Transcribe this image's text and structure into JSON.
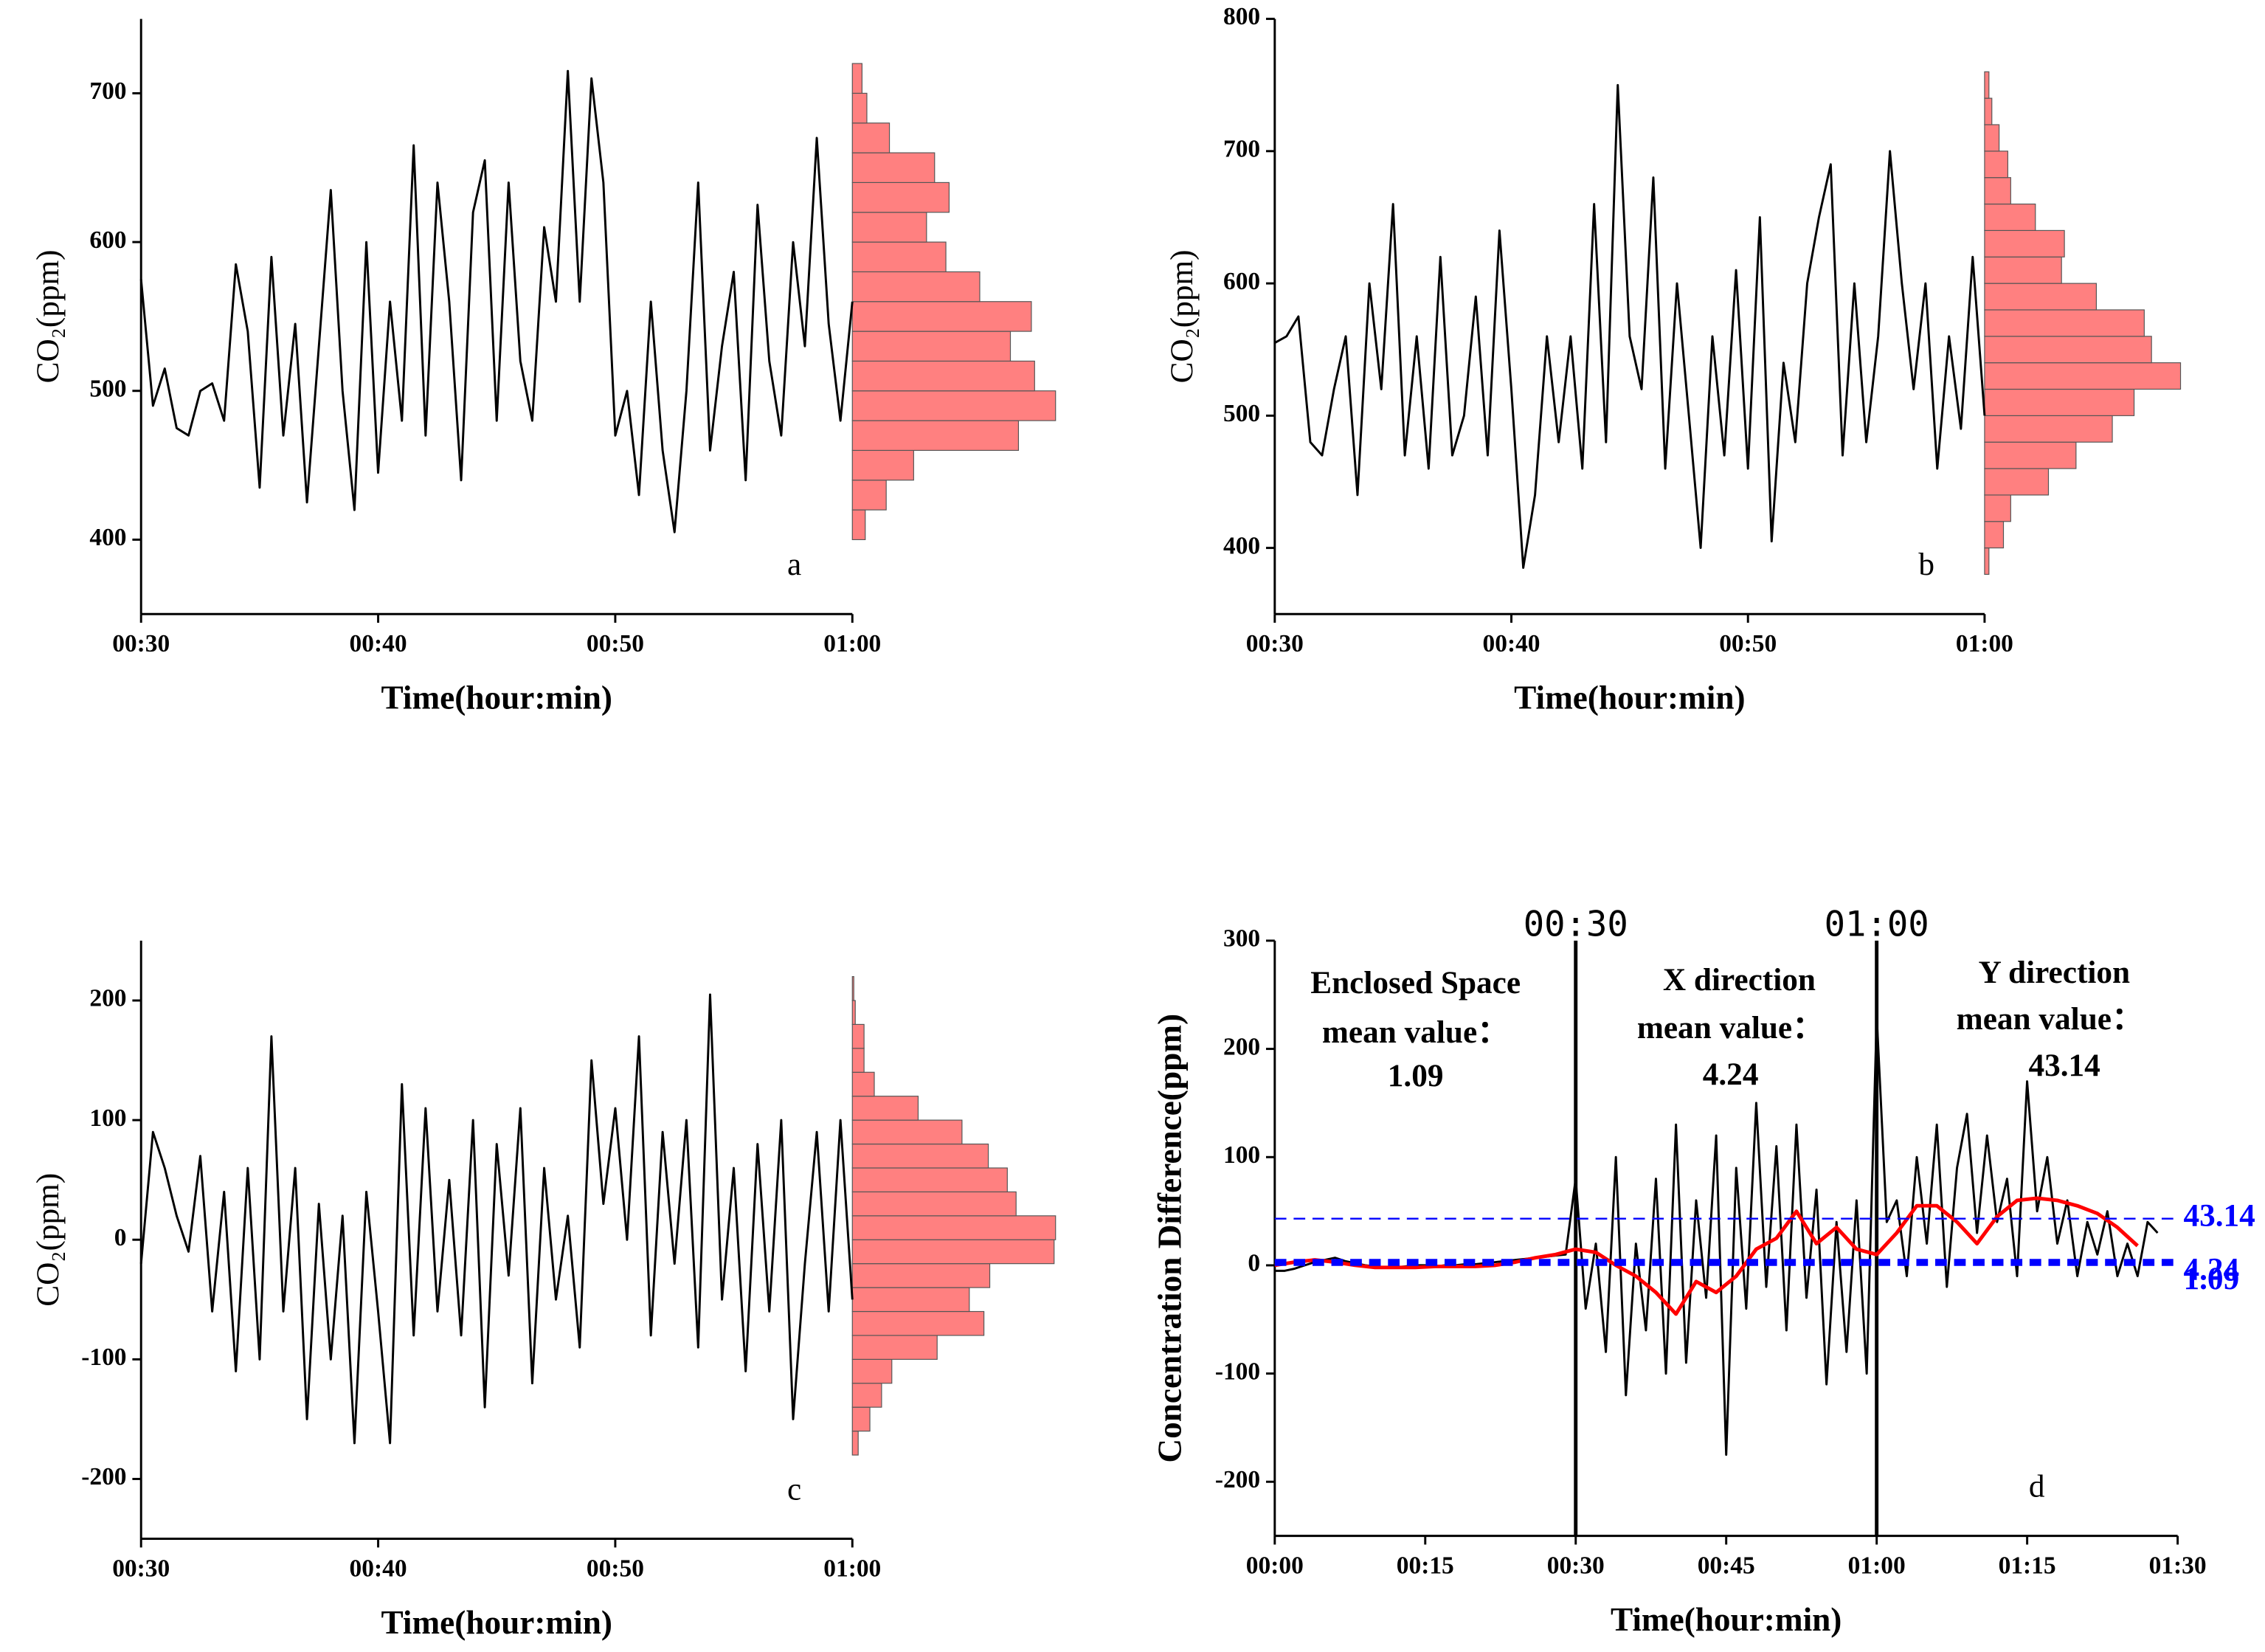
{
  "chart_data": [
    {
      "type": "line",
      "label": "a",
      "xlabel": "Time(hour:min)",
      "ylabel": "CO₂(ppm)",
      "xlim": [
        30,
        60
      ],
      "xticks": [
        {
          "value": 30,
          "label": "00:30"
        },
        {
          "value": 40,
          "label": "00:40"
        },
        {
          "value": 50,
          "label": "00:50"
        },
        {
          "value": 60,
          "label": "01:00"
        }
      ],
      "ylim": [
        350,
        750
      ],
      "yticks": [
        400,
        500,
        600,
        700
      ],
      "x": [
        30,
        30.5,
        31,
        31.5,
        32,
        32.5,
        33,
        33.5,
        34,
        34.5,
        35,
        35.5,
        36,
        36.5,
        37,
        37.5,
        38,
        38.5,
        39,
        39.5,
        40,
        40.5,
        41,
        41.5,
        42,
        42.5,
        43,
        43.5,
        44,
        44.5,
        45,
        45.5,
        46,
        46.5,
        47,
        47.5,
        48,
        48.5,
        49,
        49.5,
        50,
        50.5,
        51,
        51.5,
        52,
        52.5,
        53,
        53.5,
        54,
        54.5,
        55,
        55.5,
        56,
        56.5,
        57,
        57.5,
        58,
        58.5,
        59,
        59.5,
        60
      ],
      "series": [
        {
          "color": "#000000",
          "values": [
            575,
            490,
            515,
            475,
            470,
            500,
            505,
            480,
            585,
            540,
            435,
            590,
            470,
            545,
            425,
            530,
            635,
            500,
            420,
            600,
            445,
            560,
            480,
            665,
            470,
            640,
            560,
            440,
            620,
            655,
            480,
            640,
            520,
            480,
            610,
            560,
            715,
            560,
            710,
            640,
            470,
            500,
            430,
            560,
            460,
            405,
            500,
            640,
            460,
            530,
            580,
            440,
            625,
            520,
            470,
            600,
            530,
            670,
            545,
            480,
            560
          ]
        }
      ],
      "histogram": {
        "color": "#ff8080",
        "bins": [
          400,
          420,
          440,
          460,
          480,
          500,
          520,
          540,
          560,
          580,
          600,
          620,
          640,
          660,
          680,
          700,
          720
        ],
        "counts": [
          8,
          21,
          38,
          103,
          126,
          113,
          98,
          111,
          79,
          58,
          46,
          60,
          51,
          23,
          9,
          6
        ]
      }
    },
    {
      "type": "line",
      "label": "b",
      "xlabel": "Time(hour:min)",
      "ylabel": "CO₂(ppm)",
      "xlim": [
        30,
        60
      ],
      "xticks": [
        {
          "value": 30,
          "label": "00:30"
        },
        {
          "value": 40,
          "label": "00:40"
        },
        {
          "value": 50,
          "label": "00:50"
        },
        {
          "value": 60,
          "label": "01:00"
        }
      ],
      "ylim": [
        350,
        800
      ],
      "yticks": [
        400,
        500,
        600,
        700,
        800
      ],
      "x": [
        30,
        30.5,
        31,
        31.5,
        32,
        32.5,
        33,
        33.5,
        34,
        34.5,
        35,
        35.5,
        36,
        36.5,
        37,
        37.5,
        38,
        38.5,
        39,
        39.5,
        40,
        40.5,
        41,
        41.5,
        42,
        42.5,
        43,
        43.5,
        44,
        44.5,
        45,
        45.5,
        46,
        46.5,
        47,
        47.5,
        48,
        48.5,
        49,
        49.5,
        50,
        50.5,
        51,
        51.5,
        52,
        52.5,
        53,
        53.5,
        54,
        54.5,
        55,
        55.5,
        56,
        56.5,
        57,
        57.5,
        58,
        58.5,
        59,
        59.5,
        60
      ],
      "series": [
        {
          "color": "#000000",
          "values": [
            555,
            560,
            575,
            480,
            470,
            520,
            560,
            440,
            600,
            520,
            660,
            470,
            560,
            460,
            620,
            470,
            500,
            590,
            470,
            640,
            520,
            385,
            440,
            560,
            480,
            560,
            460,
            660,
            480,
            750,
            560,
            520,
            680,
            460,
            600,
            500,
            400,
            560,
            470,
            610,
            460,
            650,
            405,
            540,
            480,
            600,
            650,
            690,
            470,
            600,
            480,
            560,
            700,
            600,
            520,
            600,
            460,
            560,
            490,
            620,
            500
          ]
        }
      ],
      "histogram": {
        "color": "#ff8080",
        "bins": [
          380,
          400,
          420,
          440,
          460,
          480,
          500,
          520,
          540,
          560,
          580,
          600,
          620,
          640,
          660,
          680,
          700,
          720,
          740,
          760
        ],
        "counts": [
          3,
          13,
          18,
          44,
          63,
          88,
          103,
          135,
          115,
          110,
          77,
          53,
          55,
          35,
          18,
          16,
          10,
          5,
          3
        ]
      }
    },
    {
      "type": "line",
      "label": "c",
      "xlabel": "Time(hour:min)",
      "ylabel": "CO₂(ppm)",
      "xlim": [
        30,
        60
      ],
      "xticks": [
        {
          "value": 30,
          "label": "00:30"
        },
        {
          "value": 40,
          "label": "00:40"
        },
        {
          "value": 50,
          "label": "00:50"
        },
        {
          "value": 60,
          "label": "01:00"
        }
      ],
      "ylim": [
        -250,
        250
      ],
      "yticks": [
        -200,
        -100,
        0,
        100,
        200
      ],
      "x": [
        30,
        30.5,
        31,
        31.5,
        32,
        32.5,
        33,
        33.5,
        34,
        34.5,
        35,
        35.5,
        36,
        36.5,
        37,
        37.5,
        38,
        38.5,
        39,
        39.5,
        40,
        40.5,
        41,
        41.5,
        42,
        42.5,
        43,
        43.5,
        44,
        44.5,
        45,
        45.5,
        46,
        46.5,
        47,
        47.5,
        48,
        48.5,
        49,
        49.5,
        50,
        50.5,
        51,
        51.5,
        52,
        52.5,
        53,
        53.5,
        54,
        54.5,
        55,
        55.5,
        56,
        56.5,
        57,
        57.5,
        58,
        58.5,
        59,
        59.5,
        60
      ],
      "series": [
        {
          "color": "#000000",
          "values": [
            -20,
            90,
            60,
            20,
            -10,
            70,
            -60,
            40,
            -110,
            60,
            -100,
            170,
            -60,
            60,
            -150,
            30,
            -100,
            20,
            -170,
            40,
            -60,
            -170,
            130,
            -80,
            110,
            -60,
            50,
            -80,
            100,
            -140,
            80,
            -30,
            110,
            -120,
            60,
            -50,
            20,
            -90,
            150,
            30,
            110,
            0,
            170,
            -80,
            90,
            -20,
            100,
            -90,
            205,
            -50,
            60,
            -110,
            80,
            -60,
            100,
            -150,
            -20,
            90,
            -60,
            100,
            -50
          ]
        }
      ],
      "histogram": {
        "color": "#ff8080",
        "bins": [
          -180,
          -160,
          -140,
          -120,
          -100,
          -80,
          -60,
          -40,
          -20,
          0,
          20,
          40,
          60,
          80,
          100,
          120,
          140,
          160,
          180,
          200,
          220
        ],
        "counts": [
          4,
          12,
          20,
          27,
          58,
          90,
          80,
          94,
          138,
          139,
          112,
          106,
          93,
          75,
          45,
          15,
          8,
          8,
          2,
          1
        ]
      }
    },
    {
      "type": "line",
      "label": "d",
      "xlabel": "Time(hour:min)",
      "ylabel": "Concentration Difference(ppm)",
      "xlim": [
        0,
        90
      ],
      "xticks": [
        {
          "value": 0,
          "label": "00:00"
        },
        {
          "value": 15,
          "label": "00:15"
        },
        {
          "value": 30,
          "label": "00:30"
        },
        {
          "value": 45,
          "label": "00:45"
        },
        {
          "value": 60,
          "label": "01:00"
        },
        {
          "value": 75,
          "label": "01:15"
        },
        {
          "value": 90,
          "label": "01:30"
        }
      ],
      "ylim": [
        -250,
        300
      ],
      "yticks": [
        -200,
        -100,
        0,
        100,
        200,
        300
      ],
      "series": [
        {
          "color": "#000000",
          "x": [
            0,
            1,
            2,
            3,
            4,
            5,
            6,
            7,
            8,
            9,
            10,
            11,
            12,
            13,
            14,
            15,
            16,
            17,
            18,
            19,
            20,
            21,
            22,
            23,
            24,
            25,
            26,
            27,
            28,
            29,
            30,
            31,
            32,
            33,
            34,
            35,
            36,
            37,
            38,
            39,
            40,
            41,
            42,
            43,
            44,
            45,
            46,
            47,
            48,
            49,
            50,
            51,
            52,
            53,
            54,
            55,
            56,
            57,
            58,
            59,
            60,
            61,
            62,
            63,
            64,
            65,
            66,
            67,
            68,
            69,
            70,
            71,
            72,
            73,
            74,
            75,
            76,
            77,
            78,
            79,
            80,
            81,
            82,
            83,
            84,
            85,
            86,
            87,
            88
          ],
          "values": [
            -5,
            -5,
            -3,
            0,
            3,
            5,
            7,
            4,
            2,
            0,
            -1,
            -2,
            -2,
            -1,
            0,
            0,
            -1,
            0,
            0,
            1,
            1,
            2,
            3,
            4,
            5,
            6,
            7,
            8,
            9,
            10,
            80,
            -40,
            20,
            -80,
            100,
            -120,
            20,
            -60,
            80,
            -100,
            130,
            -90,
            60,
            -30,
            120,
            -175,
            90,
            -40,
            150,
            -20,
            110,
            -60,
            130,
            -30,
            70,
            -110,
            40,
            -80,
            60,
            -100,
            230,
            40,
            60,
            -10,
            100,
            20,
            130,
            -20,
            90,
            140,
            30,
            120,
            40,
            80,
            -10,
            170,
            50,
            100,
            20,
            60,
            -10,
            40,
            10,
            50,
            -10,
            20,
            -10,
            40,
            30
          ]
        },
        {
          "color": "#ff0000",
          "x": [
            0,
            2,
            4,
            6,
            8,
            10,
            12,
            14,
            16,
            18,
            20,
            22,
            24,
            26,
            28,
            30,
            32,
            34,
            36,
            38,
            40,
            42,
            44,
            46,
            48,
            50,
            52,
            54,
            56,
            58,
            60,
            62,
            64,
            66,
            68,
            70,
            72,
            74,
            76,
            78,
            80,
            82,
            84,
            86
          ],
          "values": [
            0,
            3,
            5,
            3,
            0,
            -2,
            -2,
            -2,
            -1,
            -1,
            -1,
            0,
            3,
            7,
            10,
            15,
            12,
            0,
            -10,
            -25,
            -45,
            -15,
            -25,
            -10,
            15,
            25,
            50,
            20,
            35,
            15,
            10,
            30,
            55,
            55,
            40,
            20,
            45,
            60,
            62,
            60,
            55,
            48,
            35,
            18
          ]
        }
      ],
      "vlines": [
        {
          "value": 30,
          "label": "00:30"
        },
        {
          "value": 60,
          "label": "01:00"
        }
      ],
      "hlines": [
        43.14,
        4.24,
        1.09
      ],
      "hline_color": "#0000ff",
      "annotations": [
        "Enclosed Space",
        "mean value：",
        "1.09",
        "X direction",
        "mean value：",
        "4.24",
        "Y direction",
        "mean value：",
        "43.14"
      ]
    }
  ]
}
